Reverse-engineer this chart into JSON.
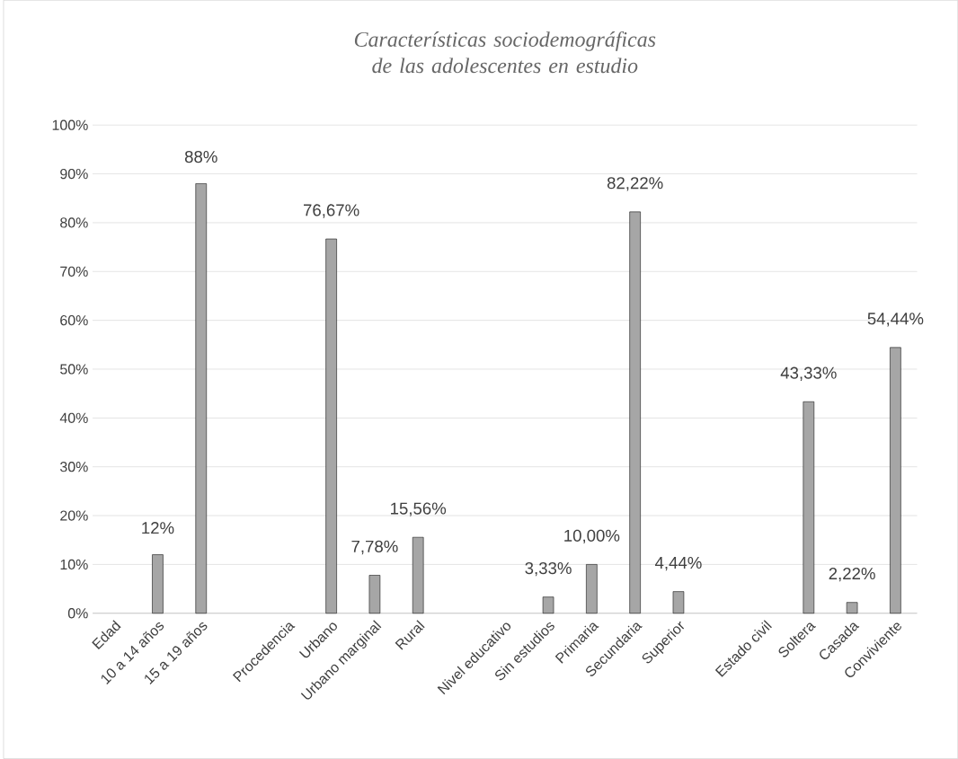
{
  "chart_data": {
    "type": "bar",
    "title": "Características sociodemográficas de las adolescentes en estudio",
    "categories": [
      "Edad",
      "10 a 14 años",
      "15 a 19 años",
      null,
      "Procedencia",
      "Urbano",
      "Urbano marginal",
      "Rural",
      null,
      "Nivel educativo",
      "Sin estudios",
      "Primaria",
      "Secundaria",
      "Superior",
      null,
      "Estado civil",
      "Soltera",
      "Casada",
      "Conviviente"
    ],
    "values": [
      null,
      12,
      88,
      null,
      null,
      76.67,
      7.78,
      15.56,
      null,
      null,
      3.33,
      10.0,
      82.22,
      4.44,
      null,
      null,
      43.33,
      2.22,
      54.44
    ],
    "value_labels": [
      null,
      "12%",
      "88%",
      null,
      null,
      "76,67%",
      "7,78%",
      "15,56%",
      null,
      null,
      "3,33%",
      "10,00%",
      "82,22%",
      "4,44%",
      null,
      null,
      "43,33%",
      "2,22%",
      "54,44%"
    ],
    "color": "#a6a6a6",
    "ylim": [
      0,
      100
    ],
    "yticks": [
      {
        "value": 0,
        "label": "0%"
      },
      {
        "value": 10,
        "label": "10%"
      },
      {
        "value": 20,
        "label": "20%"
      },
      {
        "value": 30,
        "label": "30%"
      },
      {
        "value": 40,
        "label": "40%"
      },
      {
        "value": 50,
        "label": "50%"
      },
      {
        "value": 60,
        "label": "60%"
      },
      {
        "value": 70,
        "label": "70%"
      },
      {
        "value": 80,
        "label": "80%"
      },
      {
        "value": 90,
        "label": "90%"
      },
      {
        "value": 100,
        "label": "100%"
      }
    ],
    "grid": "y"
  }
}
